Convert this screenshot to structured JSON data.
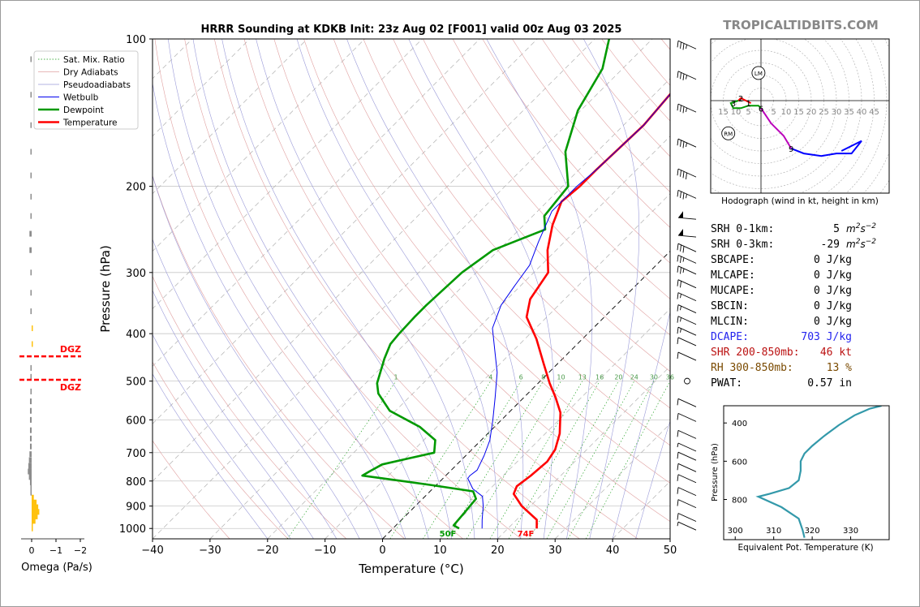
{
  "branding": "TROPICALTIDBITS.COM",
  "chart_data": [
    {
      "type": "line",
      "title": "HRRR Sounding at KDKB Init: 23z Aug 02 [F001] valid 00z Aug 03 2025",
      "xlabel": "Temperature (°C)",
      "ylabel": "Pressure (hPa)",
      "xlim": [
        -40,
        50
      ],
      "ylim": [
        1050,
        100
      ],
      "yscale": "log",
      "x_ticks": [
        "−40",
        "−30",
        "−20",
        "−10",
        "0",
        "10",
        "20",
        "30",
        "40",
        "50"
      ],
      "y_ticks": [
        {
          "p": 1000,
          "label": "1000"
        },
        {
          "p": 900,
          "label": "900"
        },
        {
          "p": 800,
          "label": "800"
        },
        {
          "p": 700,
          "label": "700"
        },
        {
          "p": 600,
          "label": "600"
        },
        {
          "p": 500,
          "label": "500"
        },
        {
          "p": 400,
          "label": "400"
        },
        {
          "p": 300,
          "label": "300"
        },
        {
          "p": 200,
          "label": "200"
        },
        {
          "p": 100,
          "label": "100"
        }
      ],
      "legend": [
        "Sat. Mix. Ratio",
        "Dry Adiabats",
        "Pseudoadiabats",
        "Wetbulb",
        "Dewpoint",
        "Temperature"
      ],
      "legend_position": "top-left",
      "mixing_ratio_labels": [
        "1",
        "4",
        "6",
        "8",
        "10",
        "13",
        "16",
        "20",
        "24",
        "30",
        "36"
      ],
      "surface_labels": {
        "dewpoint": "50F",
        "temperature": "74F"
      },
      "colors": {
        "temperature": "#ff0000",
        "dewpoint": "#009900",
        "wetbulb": "#0000ee",
        "mix": "#119911"
      },
      "series": [
        {
          "name": "Temperature",
          "points": [
            [
              25.0,
              1000
            ],
            [
              23.5,
              960
            ],
            [
              18.5,
              900
            ],
            [
              15.0,
              850
            ],
            [
              14.2,
              820
            ],
            [
              14.8,
              780
            ],
            [
              15.2,
              730
            ],
            [
              14.5,
              690
            ],
            [
              12.5,
              640
            ],
            [
              9.0,
              580
            ],
            [
              5.5,
              540
            ],
            [
              2.0,
              505
            ],
            [
              -2.5,
              460
            ],
            [
              -8.0,
              410
            ],
            [
              -13.5,
              370
            ],
            [
              -16.0,
              340
            ],
            [
              -17.5,
              300
            ],
            [
              -21.5,
              270
            ],
            [
              -25.0,
              240
            ],
            [
              -27.5,
              215
            ],
            [
              -27.0,
              200
            ],
            [
              -27.0,
              185
            ],
            [
              -26.5,
              150
            ],
            [
              -27.5,
              125
            ],
            [
              -29.5,
              100
            ]
          ]
        },
        {
          "name": "Dewpoint",
          "points": [
            [
              11.5,
              1000
            ],
            [
              10.0,
              985
            ],
            [
              9.7,
              930
            ],
            [
              9.3,
              870
            ],
            [
              7.5,
              840
            ],
            [
              -1.0,
              815
            ],
            [
              -14.5,
              780
            ],
            [
              -14.0,
              765
            ],
            [
              -13.0,
              740
            ],
            [
              -6.0,
              700
            ],
            [
              -8.0,
              660
            ],
            [
              -13.0,
              620
            ],
            [
              -21.0,
              575
            ],
            [
              -26.0,
              530
            ],
            [
              -28.0,
              505
            ],
            [
              -31.0,
              450
            ],
            [
              -32.5,
              420
            ],
            [
              -32.8,
              400
            ],
            [
              -33.0,
              370
            ],
            [
              -33.0,
              350
            ],
            [
              -32.5,
              300
            ],
            [
              -31.0,
              270
            ],
            [
              -25.5,
              245
            ],
            [
              -28.0,
              230
            ],
            [
              -29.0,
              200
            ],
            [
              -35.5,
              170
            ],
            [
              -40.5,
              140
            ],
            [
              -43.5,
              115
            ],
            [
              -47.5,
              100
            ]
          ]
        },
        {
          "name": "Wetbulb",
          "points": [
            [
              15.5,
              1000
            ],
            [
              14.0,
              960
            ],
            [
              11.8,
              900
            ],
            [
              10.0,
              860
            ],
            [
              7.0,
              830
            ],
            [
              4.3,
              790
            ],
            [
              4.2,
              780
            ],
            [
              4.5,
              760
            ],
            [
              3.2,
              710
            ],
            [
              1.5,
              660
            ],
            [
              -1.5,
              600
            ],
            [
              -5.0,
              540
            ],
            [
              -9.0,
              480
            ],
            [
              -13.5,
              430
            ],
            [
              -17.5,
              390
            ],
            [
              -20.0,
              350
            ],
            [
              -21.0,
              320
            ],
            [
              -22.0,
              290
            ],
            [
              -24.5,
              260
            ],
            [
              -27.5,
              225
            ],
            [
              -27.5,
              200
            ],
            [
              -27.0,
              185
            ],
            [
              -26.5,
              150
            ],
            [
              -27.5,
              125
            ],
            [
              -29.5,
              100
            ]
          ]
        }
      ],
      "winds": [
        {
          "p": 1000,
          "speed": 5
        },
        {
          "p": 960,
          "speed": 10
        },
        {
          "p": 900,
          "speed": 10
        },
        {
          "p": 850,
          "speed": 10
        },
        {
          "p": 800,
          "speed": 10
        },
        {
          "p": 760,
          "speed": 10
        },
        {
          "p": 720,
          "speed": 10
        },
        {
          "p": 690,
          "speed": 5
        },
        {
          "p": 650,
          "speed": 10
        },
        {
          "p": 600,
          "speed": 10
        },
        {
          "p": 560,
          "speed": 10
        },
        {
          "p": 500,
          "speed": 0
        },
        {
          "p": 450,
          "speed": 10
        },
        {
          "p": 420,
          "speed": 10
        },
        {
          "p": 400,
          "speed": 15
        },
        {
          "p": 380,
          "speed": 15
        },
        {
          "p": 360,
          "speed": 15
        },
        {
          "p": 340,
          "speed": 15
        },
        {
          "p": 320,
          "speed": 20
        },
        {
          "p": 300,
          "speed": 25
        },
        {
          "p": 285,
          "speed": 25
        },
        {
          "p": 270,
          "speed": 30
        },
        {
          "p": 250,
          "speed": 50
        },
        {
          "p": 230,
          "speed": 50
        },
        {
          "p": 210,
          "speed": 35
        },
        {
          "p": 190,
          "speed": 40
        },
        {
          "p": 165,
          "speed": 35
        },
        {
          "p": 140,
          "speed": 35
        },
        {
          "p": 120,
          "speed": 35
        },
        {
          "p": 104,
          "speed": 35
        }
      ]
    },
    {
      "type": "bar",
      "xlabel": "Omega (Pa/s)",
      "x_ticks": [
        "0",
        "−1",
        "−2"
      ],
      "dgz_label": "DGZ",
      "dgz_bounds_hpa": [
        445,
        497
      ],
      "omega": [
        [
          1000,
          0.05
        ],
        [
          985,
          0.1
        ],
        [
          965,
          0.35
        ],
        [
          945,
          0.55
        ],
        [
          925,
          0.7
        ],
        [
          905,
          0.6
        ],
        [
          885,
          0.45
        ],
        [
          865,
          0.2
        ],
        [
          845,
          -0.05
        ],
        [
          825,
          -0.1
        ],
        [
          805,
          -0.15
        ],
        [
          785,
          -0.25
        ],
        [
          765,
          -0.35
        ],
        [
          745,
          -0.3
        ],
        [
          725,
          -0.25
        ],
        [
          705,
          -0.2
        ],
        [
          680,
          -0.15
        ],
        [
          655,
          -0.15
        ],
        [
          630,
          -0.15
        ],
        [
          600,
          -0.15
        ],
        [
          575,
          -0.15
        ],
        [
          550,
          -0.15
        ],
        [
          525,
          -0.1
        ],
        [
          490,
          -0.05
        ],
        [
          470,
          -0.02
        ],
        [
          420,
          0.02
        ],
        [
          390,
          0.01
        ],
        [
          360,
          -0.02
        ],
        [
          330,
          -0.05
        ],
        [
          300,
          -0.1
        ],
        [
          270,
          -0.2
        ],
        [
          250,
          -0.2
        ],
        [
          230,
          -0.1
        ],
        [
          210,
          -0.05
        ],
        [
          190,
          -0.05
        ],
        [
          170,
          -0.05
        ],
        [
          150,
          -0.03
        ],
        [
          130,
          -0.03
        ],
        [
          110,
          -0.02
        ]
      ]
    },
    {
      "type": "line",
      "title": "Hodograph (wind in kt, height in km)",
      "ring_labels": [
        "15",
        "10",
        "5",
        "5",
        "10",
        "15",
        "20",
        "25",
        "30",
        "35",
        "40",
        "45"
      ],
      "height_labels": [
        {
          "label": "2",
          "u": -8,
          "v": 1
        },
        {
          "label": "3",
          "u": -11,
          "v": -1
        },
        {
          "label": "1",
          "u": -5,
          "v": -1
        },
        {
          "label": "6",
          "u": 0,
          "v": -3
        },
        {
          "label": "9",
          "u": 12,
          "v": -19
        }
      ],
      "storm_motion": [
        {
          "label": "LM",
          "u": -1,
          "v": 11
        },
        {
          "label": "RM",
          "u": -13,
          "v": -13
        }
      ],
      "segments": [
        {
          "color": "#ff0000",
          "points": [
            [
              -4,
              -1
            ],
            [
              -6,
              0
            ],
            [
              -8,
              1
            ],
            [
              -9,
              0
            ]
          ]
        },
        {
          "color": "#009900",
          "points": [
            [
              -9,
              0
            ],
            [
              -12,
              -1
            ],
            [
              -11,
              -3
            ],
            [
              -8,
              -3
            ],
            [
              -5,
              -2
            ],
            [
              -1,
              -2
            ],
            [
              0,
              -3
            ]
          ]
        },
        {
          "color": "#bb00bb",
          "points": [
            [
              0,
              -3
            ],
            [
              4,
              -9
            ],
            [
              9,
              -14
            ],
            [
              12,
              -19
            ]
          ]
        },
        {
          "color": "#0000ff",
          "points": [
            [
              12,
              -19
            ],
            [
              17,
              -21
            ],
            [
              24,
              -22
            ],
            [
              30,
              -21
            ],
            [
              36,
              -21
            ],
            [
              40,
              -16
            ],
            [
              32,
              -20
            ]
          ]
        }
      ]
    },
    {
      "type": "line",
      "xlabel": "Equivalent Pot. Temperature (K)",
      "ylabel": "Pressure (hPa)",
      "x_ticks": [
        "300",
        "310",
        "320",
        "330"
      ],
      "y_ticks": [
        "400",
        "600",
        "800"
      ],
      "xlim": [
        297,
        340
      ],
      "ylim": [
        1010,
        310
      ],
      "points": [
        [
          318,
          1000
        ],
        [
          317.5,
          960
        ],
        [
          316.5,
          900
        ],
        [
          312,
          840
        ],
        [
          306,
          785
        ],
        [
          309,
          770
        ],
        [
          314,
          740
        ],
        [
          316.5,
          700
        ],
        [
          317,
          650
        ],
        [
          317,
          600
        ],
        [
          318,
          560
        ],
        [
          320,
          520
        ],
        [
          323,
          470
        ],
        [
          327,
          410
        ],
        [
          331,
          360
        ],
        [
          335,
          325
        ],
        [
          338,
          310
        ]
      ]
    }
  ],
  "stats": [
    {
      "label": "SRH 0-1km:",
      "value": "5",
      "unit": "m2s-2",
      "color": "#000000"
    },
    {
      "label": "SRH 0-3km:",
      "value": "-29",
      "unit": "m2s-2",
      "color": "#000000"
    },
    {
      "label": "SBCAPE:",
      "value": "0 J/kg",
      "unit": "",
      "color": "#000000"
    },
    {
      "label": "MLCAPE:",
      "value": "0 J/kg",
      "unit": "",
      "color": "#000000"
    },
    {
      "label": "MUCAPE:",
      "value": "0 J/kg",
      "unit": "",
      "color": "#000000"
    },
    {
      "label": "SBCIN:",
      "value": "0 J/kg",
      "unit": "",
      "color": "#000000"
    },
    {
      "label": "MLCIN:",
      "value": "0 J/kg",
      "unit": "",
      "color": "#000000"
    },
    {
      "label": "DCAPE:",
      "value": "703 J/kg",
      "unit": "",
      "color": "#2323ee"
    },
    {
      "label": "SHR 200-850mb:",
      "value": "46 kt",
      "unit": "",
      "color": "#bb1111"
    },
    {
      "label": "RH 300-850mb:",
      "value": "13 %",
      "unit": "",
      "color": "#7a4a00"
    },
    {
      "label": "PWAT:",
      "value": "0.57 in",
      "unit": "",
      "color": "#000000"
    }
  ]
}
